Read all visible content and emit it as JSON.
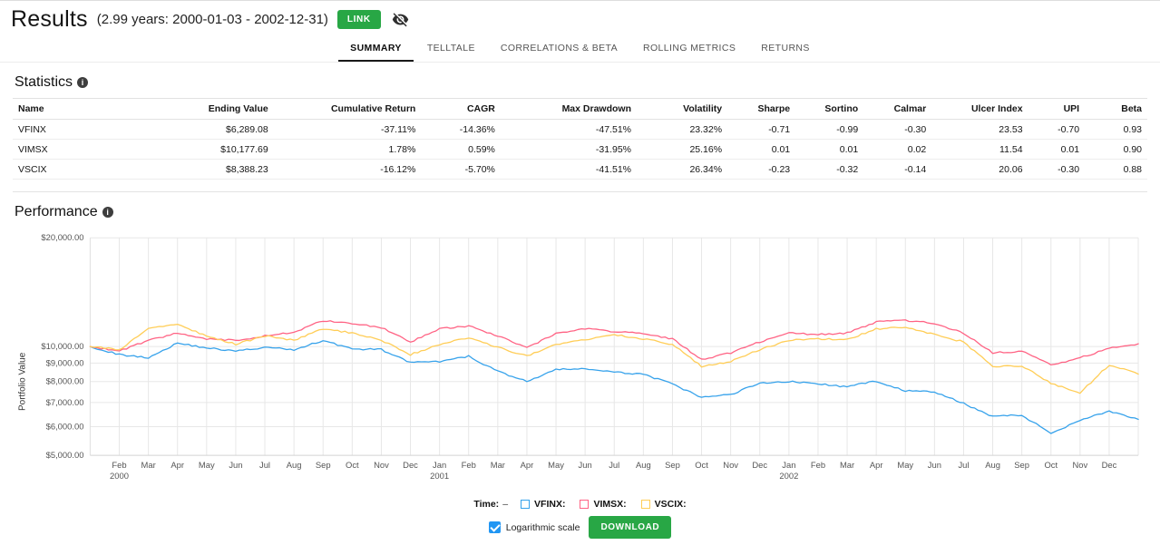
{
  "header": {
    "title": "Results",
    "subtitle": "(2.99 years: 2000-01-03 - 2002-12-31)",
    "link_button": "LINK"
  },
  "tabs": [
    {
      "label": "SUMMARY",
      "active": true
    },
    {
      "label": "TELLTALE",
      "active": false
    },
    {
      "label": "CORRELATIONS & BETA",
      "active": false
    },
    {
      "label": "ROLLING METRICS",
      "active": false
    },
    {
      "label": "RETURNS",
      "active": false
    }
  ],
  "statistics": {
    "heading": "Statistics",
    "columns": [
      "Name",
      "Ending Value",
      "Cumulative Return",
      "CAGR",
      "Max Drawdown",
      "Volatility",
      "Sharpe",
      "Sortino",
      "Calmar",
      "Ulcer Index",
      "UPI",
      "Beta"
    ],
    "rows": [
      [
        "VFINX",
        "$6,289.08",
        "-37.11%",
        "-14.36%",
        "-47.51%",
        "23.32%",
        "-0.71",
        "-0.99",
        "-0.30",
        "23.53",
        "-0.70",
        "0.93"
      ],
      [
        "VIMSX",
        "$10,177.69",
        "1.78%",
        "0.59%",
        "-31.95%",
        "25.16%",
        "0.01",
        "0.01",
        "0.02",
        "11.54",
        "0.01",
        "0.90"
      ],
      [
        "VSCIX",
        "$8,388.23",
        "-16.12%",
        "-5.70%",
        "-41.51%",
        "26.34%",
        "-0.23",
        "-0.32",
        "-0.14",
        "20.06",
        "-0.30",
        "0.88"
      ]
    ]
  },
  "performance": {
    "heading": "Performance",
    "ylabel": "Portfolio Value",
    "time_label": "Time:",
    "time_value": "–",
    "logarithmic_label": "Logarithmic scale",
    "logarithmic_checked": true,
    "download_button": "DOWNLOAD"
  },
  "colors": {
    "accent_green": "#28a745",
    "checkbox_blue": "#2196f3"
  },
  "chart_data": {
    "type": "line",
    "scale": "logarithmic",
    "title": "",
    "xlabel": "",
    "ylabel": "Portfolio Value",
    "grid": true,
    "legend_position": "bottom",
    "ylim": [
      5000,
      20000
    ],
    "yticks": [
      20000,
      10000,
      9000,
      8000,
      7000,
      6000,
      5000
    ],
    "ytick_labels": [
      "$20,000.00",
      "$10,000.00",
      "$9,000.00",
      "$8,000.00",
      "$7,000.00",
      "$6,000.00",
      "$5,000.00"
    ],
    "x_start": "2000-01-03",
    "x_end": "2002-12-31",
    "xticks": [
      {
        "label": "Feb",
        "year": "2000"
      },
      {
        "label": "Mar"
      },
      {
        "label": "Apr"
      },
      {
        "label": "May"
      },
      {
        "label": "Jun"
      },
      {
        "label": "Jul"
      },
      {
        "label": "Aug"
      },
      {
        "label": "Sep"
      },
      {
        "label": "Oct"
      },
      {
        "label": "Nov"
      },
      {
        "label": "Dec"
      },
      {
        "label": "Jan",
        "year": "2001"
      },
      {
        "label": "Feb"
      },
      {
        "label": "Mar"
      },
      {
        "label": "Apr"
      },
      {
        "label": "May"
      },
      {
        "label": "Jun"
      },
      {
        "label": "Jul"
      },
      {
        "label": "Aug"
      },
      {
        "label": "Sep"
      },
      {
        "label": "Oct"
      },
      {
        "label": "Nov"
      },
      {
        "label": "Dec"
      },
      {
        "label": "Jan",
        "year": "2002"
      },
      {
        "label": "Feb"
      },
      {
        "label": "Mar"
      },
      {
        "label": "Apr"
      },
      {
        "label": "May"
      },
      {
        "label": "Jun"
      },
      {
        "label": "Jul"
      },
      {
        "label": "Aug"
      },
      {
        "label": "Sep"
      },
      {
        "label": "Oct"
      },
      {
        "label": "Nov"
      },
      {
        "label": "Dec"
      }
    ],
    "series": [
      {
        "name": "VFINX",
        "color": "#36a2eb",
        "values": [
          10000,
          9500,
          9320,
          10224,
          9917,
          9709,
          9951,
          9792,
          10399,
          9848,
          9809,
          9034,
          9079,
          9397,
          8542,
          8004,
          8628,
          8688,
          8480,
          8395,
          7866,
          7229,
          7366,
          7933,
          8005,
          7885,
          7735,
          8029,
          7539,
          7486,
          6955,
          6412,
          6457,
          5753,
          6259,
          6629,
          6289.08
        ]
      },
      {
        "name": "VIMSX",
        "color": "#ff6384",
        "values": [
          10000,
          9720,
          10400,
          10900,
          10500,
          10400,
          10700,
          10950,
          11800,
          11600,
          11300,
          10300,
          11200,
          11400,
          10700,
          9900,
          10900,
          11200,
          11000,
          10900,
          10500,
          9200,
          9600,
          10300,
          10900,
          10800,
          10900,
          11700,
          11800,
          11600,
          10900,
          9600,
          9700,
          8900,
          9300,
          9900,
          10177.69
        ]
      },
      {
        "name": "VSCIX",
        "color": "#ffcd56",
        "values": [
          10000,
          9800,
          11200,
          11500,
          10700,
          10150,
          10700,
          10400,
          11200,
          10900,
          10400,
          9500,
          10150,
          10600,
          9950,
          9400,
          10150,
          10450,
          10800,
          10500,
          10150,
          8800,
          9100,
          9800,
          10400,
          10500,
          10450,
          11200,
          11300,
          10800,
          10300,
          8800,
          8850,
          7900,
          7450,
          8900,
          8388.23
        ]
      }
    ]
  }
}
